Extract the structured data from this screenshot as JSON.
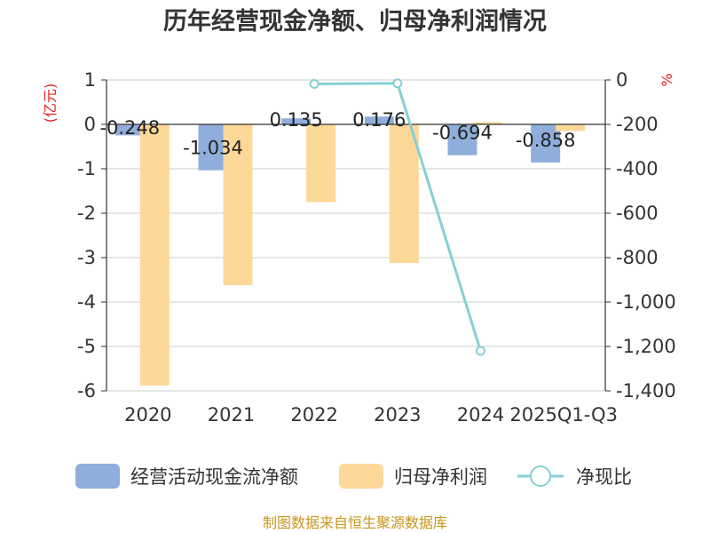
{
  "chart_data": {
    "type": "bar",
    "title": "历年经营现金净额、归母净利润情况",
    "categories": [
      "2020",
      "2021",
      "2022",
      "2023",
      "2024",
      "2025Q1-Q3"
    ],
    "left_axis": {
      "unit_label": "(亿元)",
      "ylim": [
        -6,
        1
      ],
      "ticks": [
        1,
        0,
        -1,
        -2,
        -3,
        -4,
        -5,
        -6
      ]
    },
    "right_axis": {
      "unit_label": "%",
      "ylim": [
        -1400,
        0
      ],
      "ticks": [
        "0",
        "-200",
        "-400",
        "-600",
        "-800",
        "-1,000",
        "-1,200",
        "-1,400"
      ]
    },
    "series": [
      {
        "name": "经营活动现金流净额",
        "type": "bar",
        "axis": "left",
        "color": "#8faedb",
        "values": [
          -0.248,
          -1.034,
          0.135,
          0.176,
          -0.694,
          -0.858
        ],
        "labels": [
          "-0.248",
          "-1.034",
          "0.135",
          "0.176",
          "-0.694",
          "-0.858"
        ]
      },
      {
        "name": "归母净利润",
        "type": "bar",
        "axis": "left",
        "color": "#fdd898",
        "values": [
          -5.88,
          -3.62,
          -1.75,
          -3.12,
          0.05,
          -0.15
        ]
      },
      {
        "name": "净现比",
        "type": "line",
        "axis": "right",
        "color": "#86d0d6",
        "values": [
          null,
          null,
          -18,
          -15,
          -1220,
          null
        ]
      }
    ],
    "grid": true,
    "legend_position": "bottom"
  },
  "source_note": "制图数据来自恒生聚源数据库"
}
